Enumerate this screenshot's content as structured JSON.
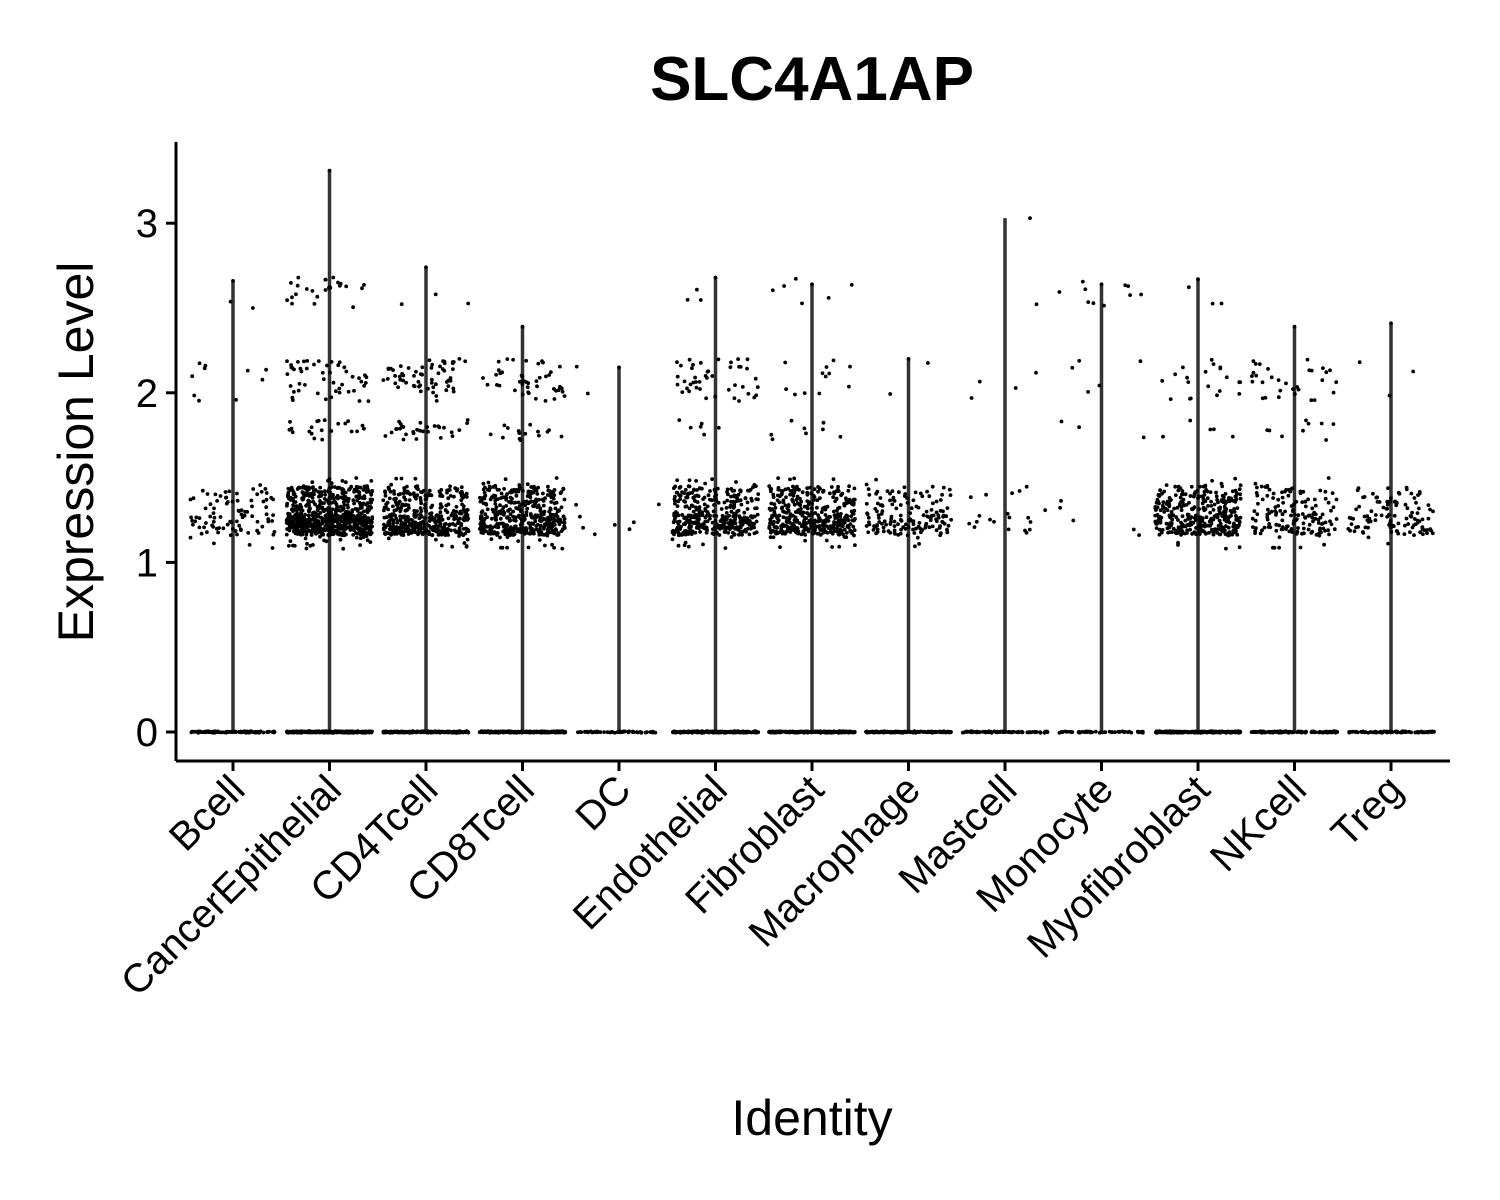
{
  "chart_data": {
    "type": "scatter",
    "subtype": "violin-jitter",
    "title": "SLC4A1AP",
    "xlabel": "Identity",
    "ylabel": "Expression Level",
    "ylim": [
      -0.17,
      3.47
    ],
    "yticks": [
      0,
      1,
      2,
      3
    ],
    "categories": [
      "Bcell",
      "CancerEpithelial",
      "CD4Tcell",
      "CD8Tcell",
      "DC",
      "Endothelial",
      "Fibroblast",
      "Macrophage",
      "Mastcell",
      "Monocyte",
      "Myofibroblast",
      "NKcell",
      "Treg"
    ],
    "max_values": [
      2.66,
      3.31,
      2.74,
      2.39,
      2.15,
      2.68,
      2.64,
      2.2,
      3.03,
      2.64,
      2.67,
      2.39,
      2.41
    ],
    "point_counts_zero": [
      120,
      400,
      300,
      250,
      60,
      250,
      250,
      150,
      80,
      50,
      250,
      120,
      90
    ],
    "point_counts_low": [
      90,
      700,
      420,
      420,
      8,
      380,
      420,
      150,
      20,
      5,
      350,
      150,
      110
    ],
    "point_counts_mid": [
      10,
      70,
      90,
      60,
      2,
      50,
      20,
      2,
      4,
      8,
      25,
      40,
      3
    ],
    "point_counts_high": [
      2,
      25,
      3,
      0,
      0,
      3,
      6,
      0,
      1,
      10,
      3,
      0,
      0
    ],
    "point_color": "#000000",
    "line_color": "#333333",
    "grid": false,
    "legend": "none"
  }
}
